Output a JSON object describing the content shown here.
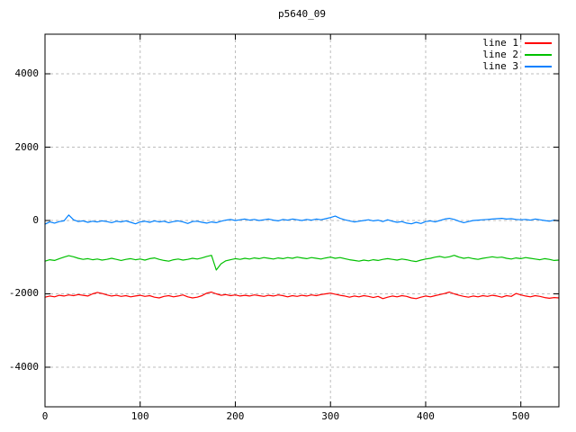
{
  "window": {
    "background": "#ffffff"
  },
  "chart_data": {
    "type": "line",
    "title": "p5640_09",
    "xlabel": "",
    "ylabel": "",
    "xlim": [
      0,
      540
    ],
    "ylim": [
      -5080,
      5080
    ],
    "xticks": [
      0,
      100,
      200,
      300,
      400,
      500
    ],
    "yticks": [
      -4000,
      -2000,
      0,
      2000,
      4000
    ],
    "grid": true,
    "grid_style": "dashed",
    "legend_position": "top-right-inside",
    "colors": {
      "grid": "#bdbdbd",
      "border": "#000000",
      "text": "#000000"
    },
    "x": [
      0,
      5,
      10,
      15,
      20,
      25,
      30,
      35,
      40,
      45,
      50,
      55,
      60,
      65,
      70,
      75,
      80,
      85,
      90,
      95,
      100,
      105,
      110,
      115,
      120,
      125,
      130,
      135,
      140,
      145,
      150,
      155,
      160,
      165,
      170,
      175,
      180,
      185,
      190,
      195,
      200,
      205,
      210,
      215,
      220,
      225,
      230,
      235,
      240,
      245,
      250,
      255,
      260,
      265,
      270,
      275,
      280,
      285,
      290,
      295,
      300,
      305,
      310,
      315,
      320,
      325,
      330,
      335,
      340,
      345,
      350,
      355,
      360,
      365,
      370,
      375,
      380,
      385,
      390,
      395,
      400,
      405,
      410,
      415,
      420,
      425,
      430,
      435,
      440,
      445,
      450,
      455,
      460,
      465,
      470,
      475,
      480,
      485,
      490,
      495,
      500,
      505,
      510,
      515,
      520,
      525,
      530,
      535,
      540
    ],
    "series": [
      {
        "name": "line 1",
        "color": "#ff0000",
        "values": [
          -2090,
          -2060,
          -2080,
          -2040,
          -2060,
          -2030,
          -2050,
          -2020,
          -2040,
          -2060,
          -2000,
          -1960,
          -1990,
          -2030,
          -2060,
          -2040,
          -2070,
          -2050,
          -2080,
          -2060,
          -2040,
          -2070,
          -2050,
          -2090,
          -2110,
          -2070,
          -2050,
          -2080,
          -2060,
          -2030,
          -2080,
          -2110,
          -2090,
          -2050,
          -1980,
          -1950,
          -2000,
          -2040,
          -2020,
          -2050,
          -2030,
          -2060,
          -2040,
          -2060,
          -2030,
          -2050,
          -2070,
          -2040,
          -2060,
          -2030,
          -2050,
          -2080,
          -2050,
          -2070,
          -2040,
          -2060,
          -2030,
          -2050,
          -2020,
          -2000,
          -1980,
          -2010,
          -2040,
          -2060,
          -2090,
          -2060,
          -2080,
          -2050,
          -2070,
          -2100,
          -2070,
          -2130,
          -2090,
          -2060,
          -2080,
          -2050,
          -2070,
          -2110,
          -2130,
          -2090,
          -2060,
          -2080,
          -2050,
          -2020,
          -1990,
          -1950,
          -2000,
          -2040,
          -2070,
          -2090,
          -2060,
          -2080,
          -2050,
          -2070,
          -2040,
          -2060,
          -2090,
          -2050,
          -2070,
          -1990,
          -2030,
          -2060,
          -2080,
          -2050,
          -2070,
          -2100,
          -2120,
          -2100,
          -2110
        ]
      },
      {
        "name": "line 2",
        "color": "#00c000",
        "values": [
          -1110,
          -1070,
          -1090,
          -1040,
          -1000,
          -960,
          -990,
          -1030,
          -1060,
          -1040,
          -1070,
          -1050,
          -1080,
          -1060,
          -1030,
          -1060,
          -1090,
          -1060,
          -1040,
          -1070,
          -1050,
          -1080,
          -1040,
          -1020,
          -1060,
          -1090,
          -1110,
          -1070,
          -1050,
          -1080,
          -1060,
          -1030,
          -1050,
          -1020,
          -980,
          -950,
          -1350,
          -1180,
          -1100,
          -1070,
          -1040,
          -1060,
          -1030,
          -1050,
          -1020,
          -1040,
          -1010,
          -1030,
          -1050,
          -1020,
          -1040,
          -1010,
          -1030,
          -1000,
          -1020,
          -1040,
          -1010,
          -1030,
          -1050,
          -1020,
          -1000,
          -1030,
          -1010,
          -1040,
          -1070,
          -1090,
          -1110,
          -1080,
          -1100,
          -1070,
          -1090,
          -1060,
          -1040,
          -1060,
          -1080,
          -1050,
          -1070,
          -1100,
          -1120,
          -1080,
          -1050,
          -1030,
          -1000,
          -980,
          -1010,
          -990,
          -950,
          -1000,
          -1030,
          -1010,
          -1040,
          -1060,
          -1030,
          -1010,
          -990,
          -1010,
          -1000,
          -1030,
          -1050,
          -1020,
          -1040,
          -1010,
          -1030,
          -1050,
          -1070,
          -1040,
          -1060,
          -1090,
          -1080
        ]
      },
      {
        "name": "line 3",
        "color": "#0080ff",
        "values": [
          -100,
          -40,
          -70,
          -30,
          -10,
          150,
          20,
          -30,
          -10,
          -50,
          -20,
          -40,
          -10,
          -30,
          -60,
          -20,
          -40,
          -10,
          -50,
          -90,
          -40,
          -20,
          -50,
          -10,
          -40,
          -20,
          -60,
          -30,
          -10,
          -40,
          -80,
          -30,
          -20,
          -50,
          -70,
          -40,
          -60,
          -20,
          10,
          30,
          0,
          20,
          40,
          10,
          30,
          0,
          20,
          40,
          10,
          -10,
          30,
          10,
          40,
          20,
          0,
          30,
          10,
          40,
          20,
          50,
          80,
          120,
          60,
          20,
          -10,
          -40,
          -20,
          0,
          20,
          -10,
          10,
          -30,
          20,
          -20,
          -50,
          -30,
          -70,
          -90,
          -50,
          -80,
          -30,
          -10,
          -40,
          0,
          40,
          60,
          30,
          -20,
          -60,
          -30,
          0,
          10,
          20,
          30,
          40,
          50,
          60,
          40,
          50,
          30,
          20,
          30,
          10,
          40,
          20,
          0,
          -20,
          10,
          -10
        ]
      }
    ]
  }
}
